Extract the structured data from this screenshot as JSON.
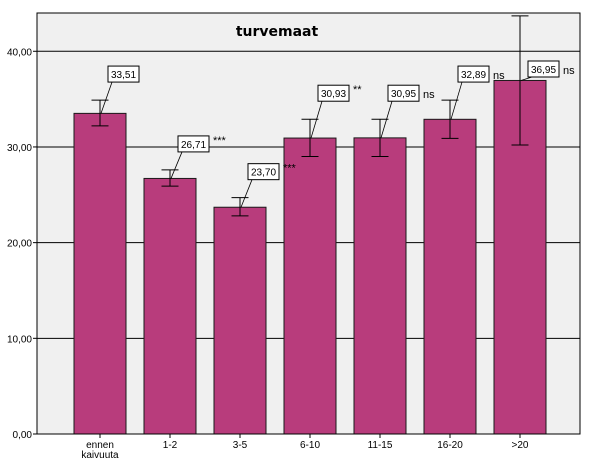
{
  "chart_data": {
    "type": "bar",
    "title": "turvemaat",
    "categories": [
      "ennen kaivuuta",
      "1-2",
      "3-5",
      "6-10",
      "11-15",
      "16-20",
      ">20"
    ],
    "category_lines": [
      [
        "ennen",
        "kaivuuta"
      ],
      [
        "1-2"
      ],
      [
        "3-5"
      ],
      [
        "6-10"
      ],
      [
        "11-15"
      ],
      [
        "16-20"
      ],
      [
        ">20"
      ]
    ],
    "values": [
      33.51,
      26.71,
      23.7,
      30.93,
      30.95,
      32.89,
      36.95
    ],
    "value_labels": [
      "33,51",
      "26,71",
      "23,70",
      "30,93",
      "30,95",
      "32,89",
      "36,95"
    ],
    "error_bars": [
      {
        "low": 32.2,
        "high": 34.9
      },
      {
        "low": 25.9,
        "high": 27.6
      },
      {
        "low": 22.8,
        "high": 24.7
      },
      {
        "low": 29.0,
        "high": 32.9
      },
      {
        "low": 29.0,
        "high": 32.9
      },
      {
        "low": 30.9,
        "high": 34.9
      },
      {
        "low": 30.2,
        "high": 43.7
      }
    ],
    "significance": [
      "",
      "***",
      "***",
      "**",
      "ns",
      "ns",
      "ns"
    ],
    "ylim": [
      0,
      44
    ],
    "yticks": [
      0,
      10,
      20,
      30,
      40
    ],
    "ytick_labels": [
      "0,00",
      "10,00",
      "20,00",
      "30,00",
      "40,00"
    ],
    "grid": true,
    "colors": {
      "bar": "#b83c7c",
      "bar_edge": "#1a1a1a",
      "plot_bg": "#f0f0f0",
      "grid": "#000000"
    }
  }
}
